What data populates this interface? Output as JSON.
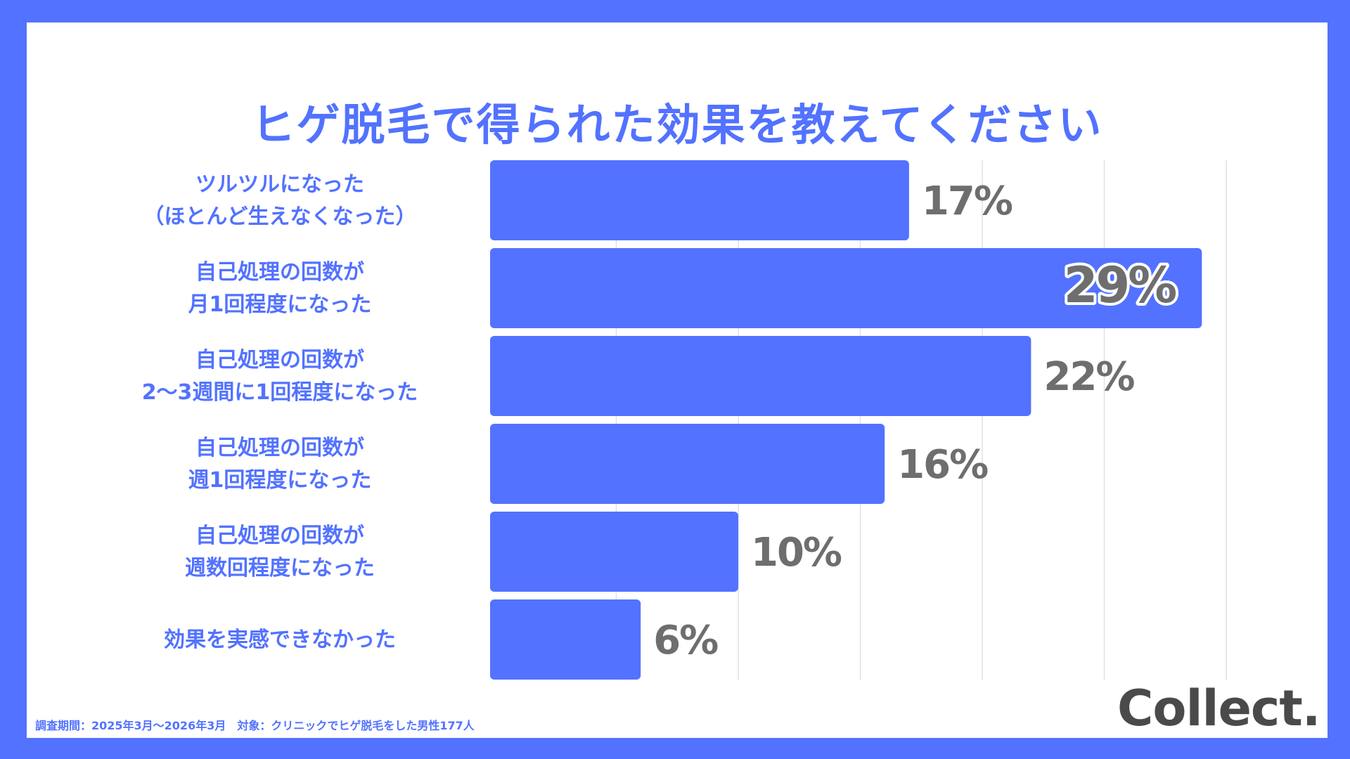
{
  "title": "ヒゲ脱毛で得られた効果を教えてください",
  "footnote": "調査期間：2025年3月〜2026年3月　対象：クリニックでヒゲ脱毛をした男性177人",
  "logo": "Collect.",
  "colors": {
    "background": "#5272FF",
    "bar": "#5272FF",
    "label": "#5272FF",
    "value": "#6E6E6E",
    "grid": "#E2E2E2",
    "highlight_outline": "#FFFFFF"
  },
  "chart_data": {
    "type": "bar",
    "orientation": "horizontal",
    "categories": [
      [
        "ツルツルになった",
        "（ほとんど生えなくなった）"
      ],
      [
        "自己処理の回数が",
        "月1回程度になった"
      ],
      [
        "自己処理の回数が",
        "2〜3週間に1回程度になった"
      ],
      [
        "自己処理の回数が",
        "週1回程度になった"
      ],
      [
        "自己処理の回数が",
        "週数回程度になった"
      ],
      [
        "効果を実感できなかった"
      ]
    ],
    "values": [
      17,
      29,
      22,
      16,
      10,
      6
    ],
    "value_labels": [
      "17%",
      "29%",
      "22%",
      "16%",
      "10%",
      "6%"
    ],
    "highlight_index": 1,
    "xlim": [
      0,
      30
    ],
    "grid": true,
    "unit": "%"
  }
}
